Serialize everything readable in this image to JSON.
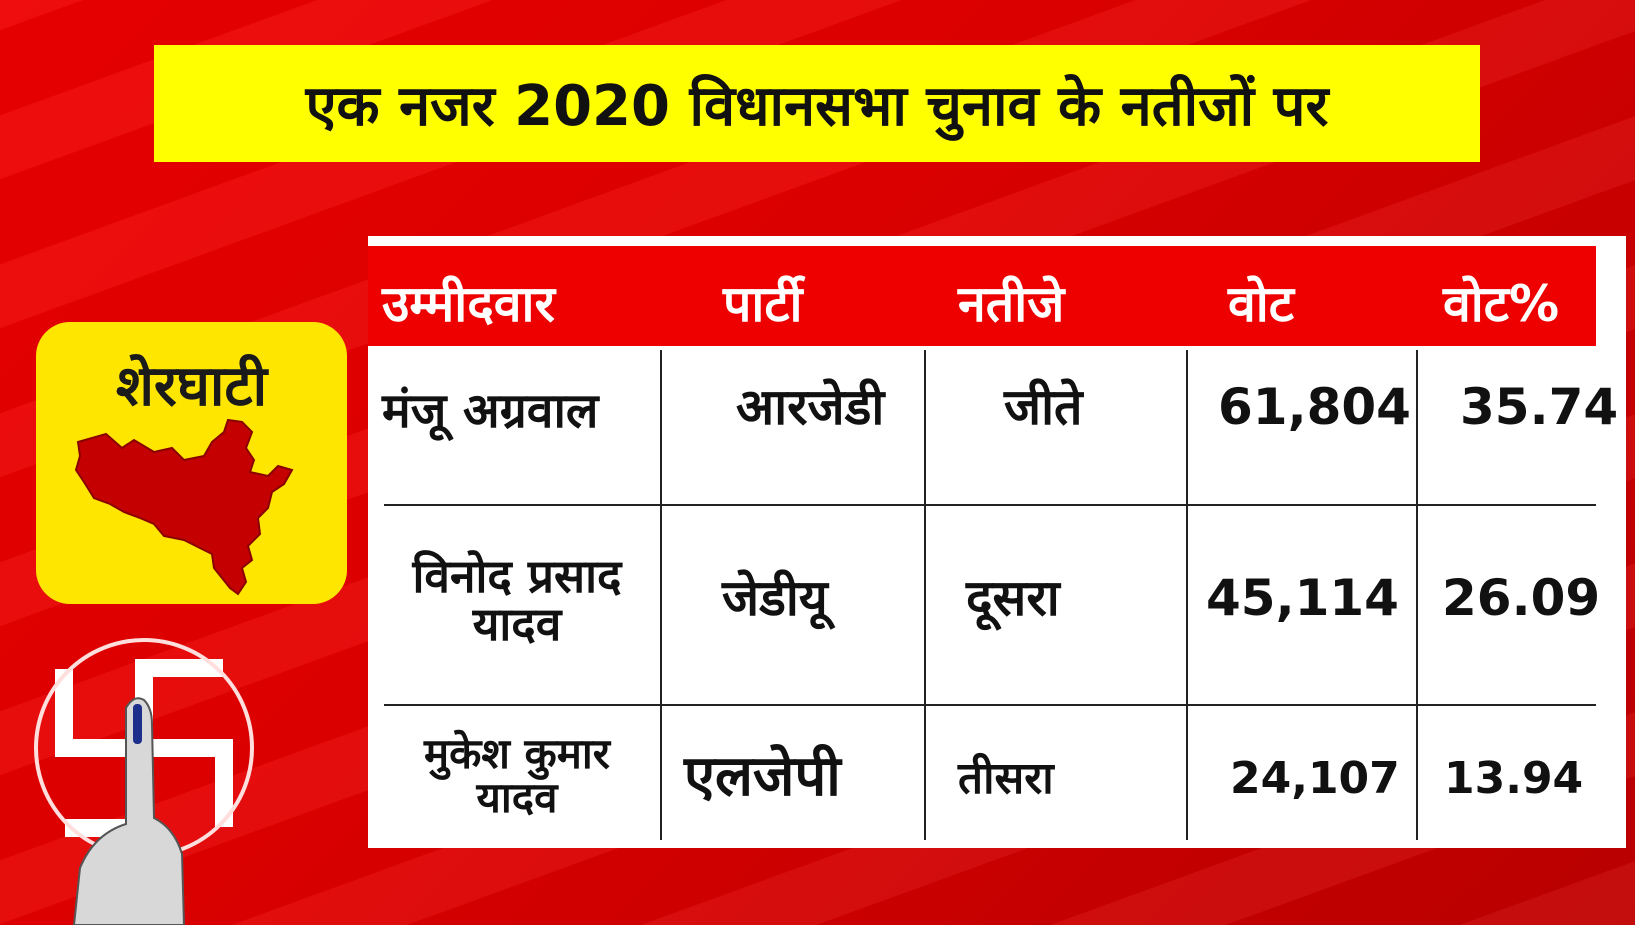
{
  "title": "एक नजर 2020 विधानसभा चुनाव के नतीजों पर",
  "constituency": "शेरघाटी",
  "table": {
    "headers": [
      "उम्मीदवार",
      "पार्टी",
      "नतीजे",
      "वोट",
      "वोट%"
    ],
    "rows": [
      {
        "candidate": "मंजू अग्रवाल",
        "party": "आरजेडी",
        "result": "जीते",
        "votes": "61,804",
        "vote_pct": "35.74"
      },
      {
        "candidate": "विनोद प्रसाद यादव",
        "party": "जेडीयू",
        "result": "दूसरा",
        "votes": "45,114",
        "vote_pct": "26.09"
      },
      {
        "candidate": "मुकेश कुमार यादव",
        "party": "एलजेपी",
        "result": "तीसरा",
        "votes": "24,107",
        "vote_pct": "13.94"
      }
    ]
  },
  "colors": {
    "background_red": "#e40000",
    "title_yellow": "#ffff00",
    "card_yellow": "#ffe600",
    "map_red": "#c40000"
  },
  "icons": [
    "constituency-map-icon",
    "election-symbol-icon",
    "inked-finger-icon"
  ]
}
